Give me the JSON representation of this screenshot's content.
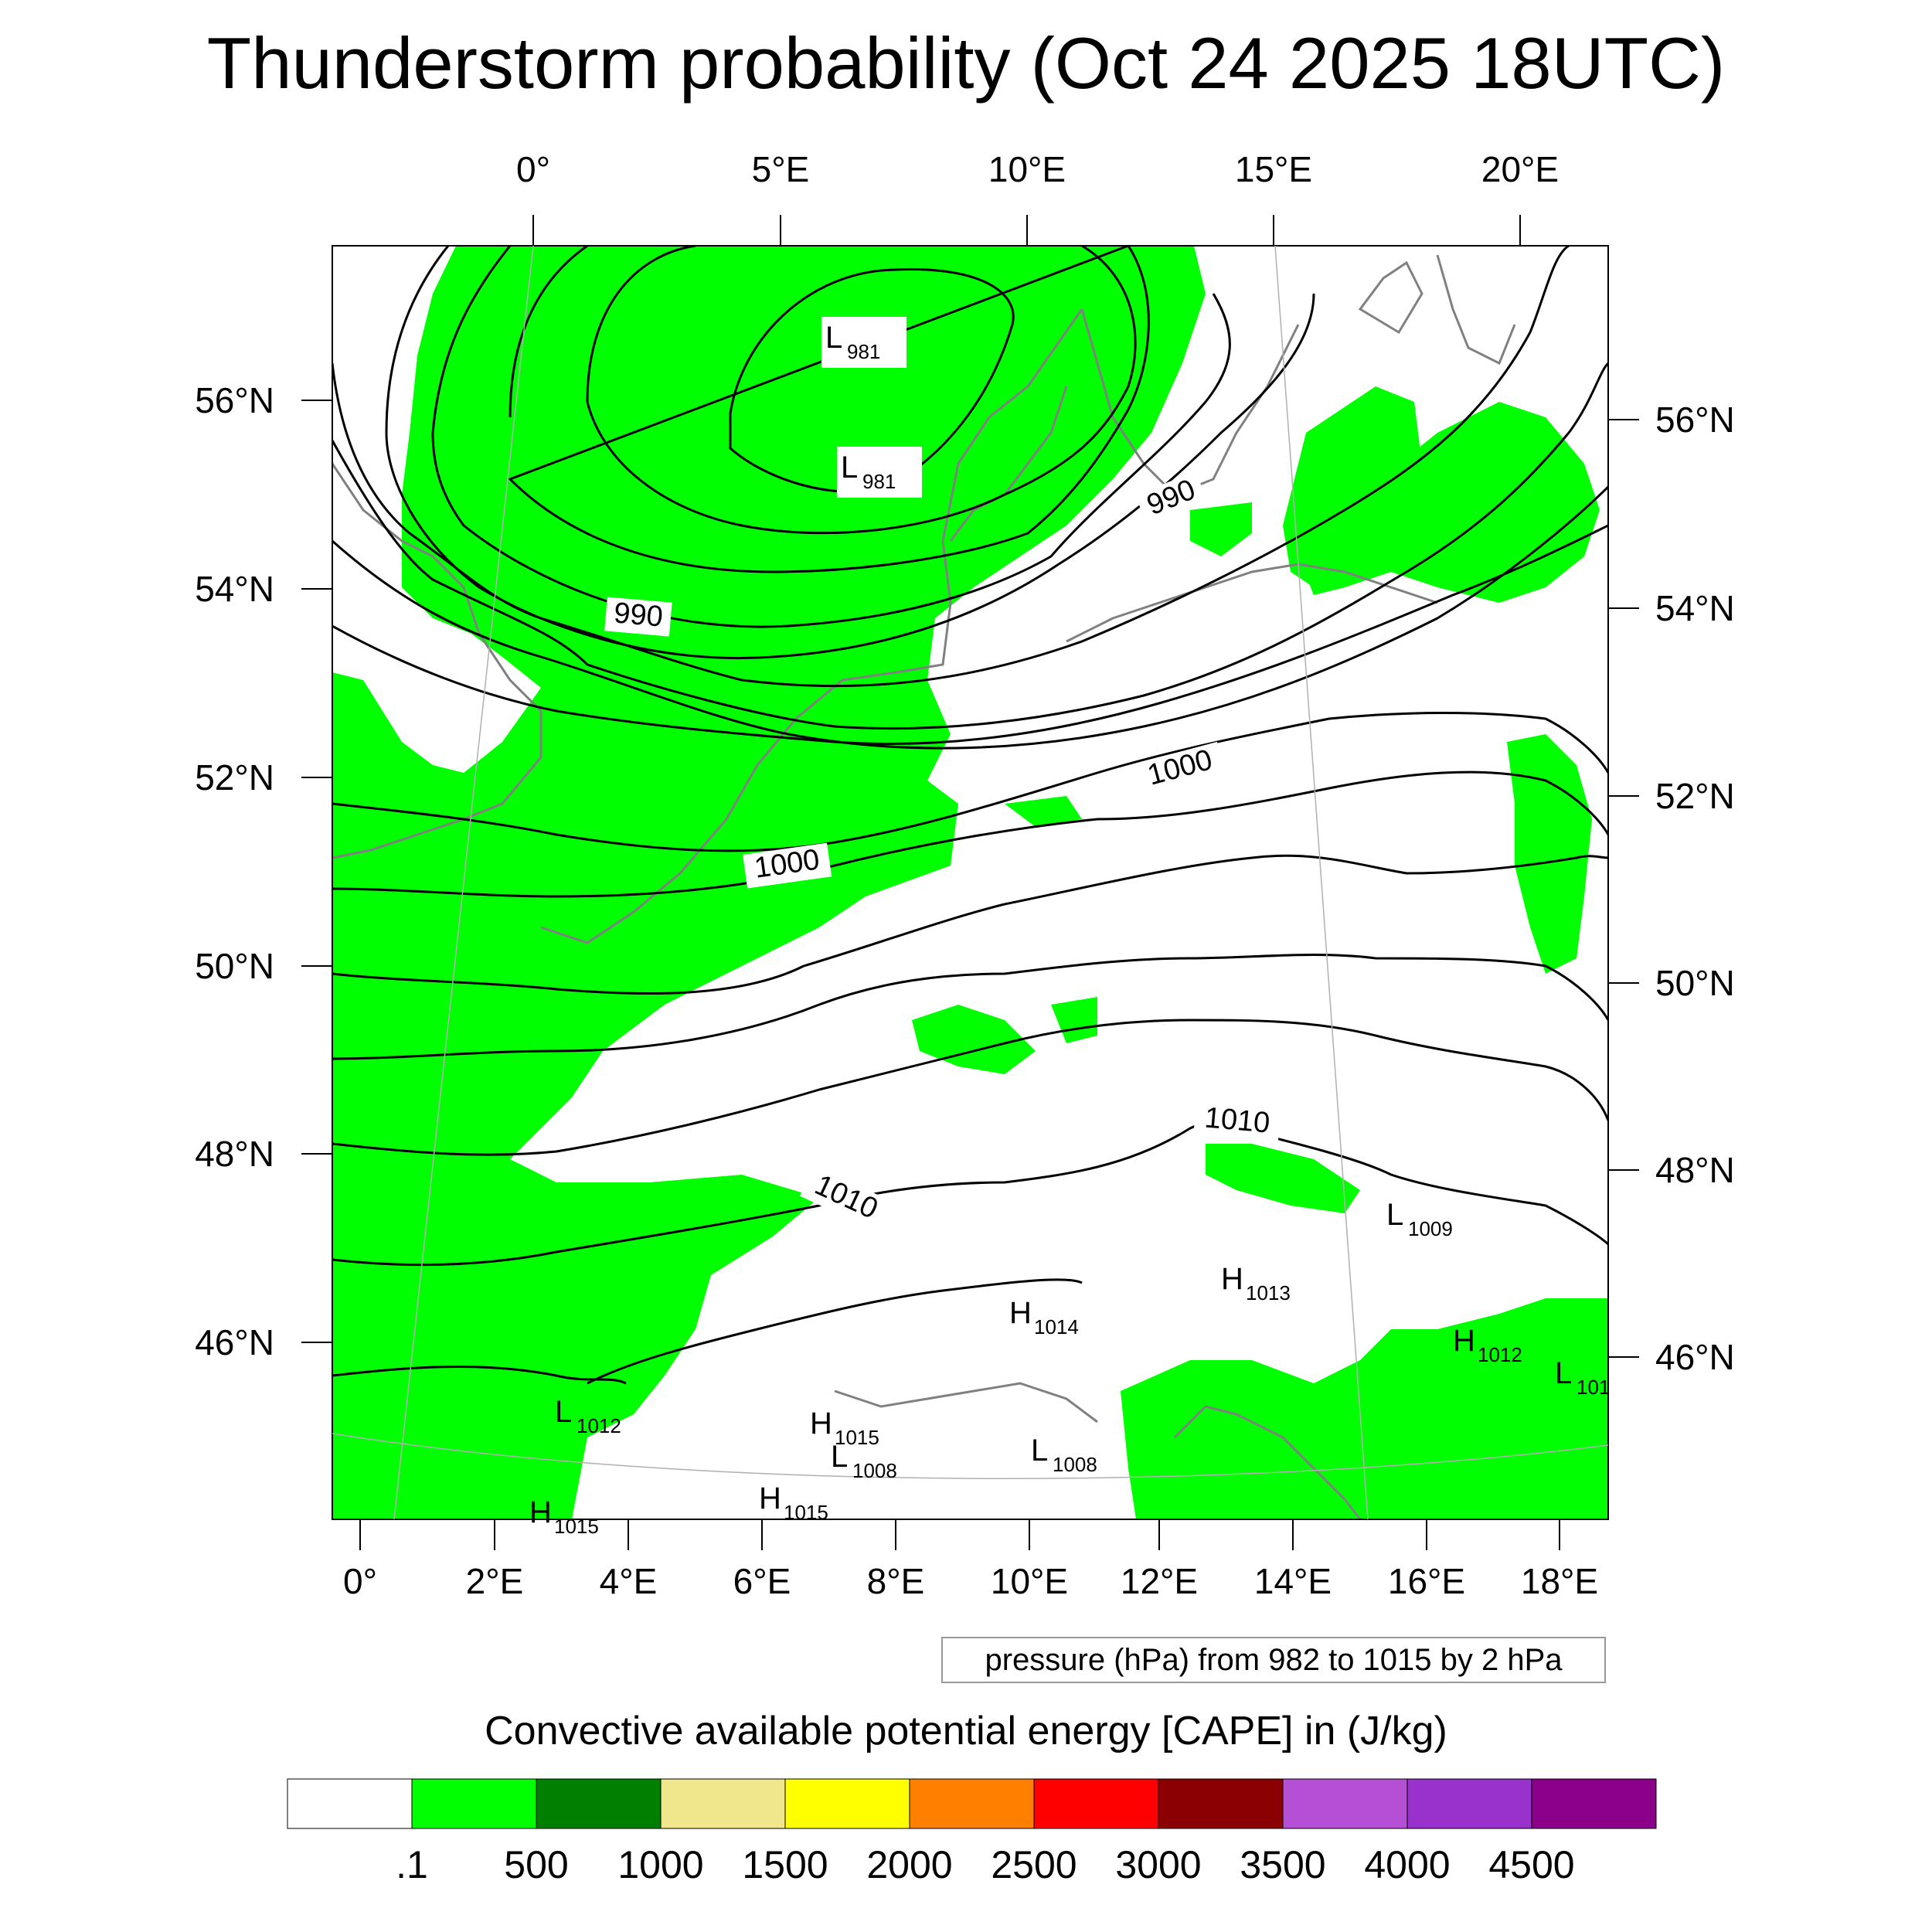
{
  "title": "Thunderstorm probability (Oct 24 2025 18UTC)",
  "top_axis_labels": [
    "0°",
    "5°E",
    "10°E",
    "15°E",
    "20°E"
  ],
  "bottom_axis_labels": [
    "0°",
    "2°E",
    "4°E",
    "6°E",
    "8°E",
    "10°E",
    "12°E",
    "14°E",
    "16°E",
    "18°E"
  ],
  "left_axis_labels": [
    "56°N",
    "54°N",
    "52°N",
    "50°N",
    "48°N",
    "46°N"
  ],
  "right_axis_labels": [
    "56°N",
    "54°N",
    "52°N",
    "50°N",
    "48°N",
    "46°N"
  ],
  "isobar_labels": [
    "990",
    "990",
    "1000",
    "1000",
    "1010",
    "1010"
  ],
  "pressure_centers": [
    {
      "type": "L",
      "value": "981"
    },
    {
      "type": "L",
      "value": "981"
    },
    {
      "type": "H",
      "value": "1013"
    },
    {
      "type": "L",
      "value": "1009"
    },
    {
      "type": "H",
      "value": "1014"
    },
    {
      "type": "H",
      "value": "1012"
    },
    {
      "type": "L",
      "value": "101"
    },
    {
      "type": "L",
      "value": "1012"
    },
    {
      "type": "H",
      "value": "1015"
    },
    {
      "type": "L",
      "value": "1008"
    },
    {
      "type": "L",
      "value": "1008"
    },
    {
      "type": "H",
      "value": "1015"
    },
    {
      "type": "H",
      "value": "1015"
    }
  ],
  "contour_info": "pressure (hPa) from 982 to 1015 by 2 hPa",
  "colorbar": {
    "title": "Convective available potential energy [CAPE] in (J/kg)",
    "labels": [
      ".1",
      "500",
      "1000",
      "1500",
      "2000",
      "2500",
      "3000",
      "3500",
      "4000",
      "4500"
    ],
    "colors": [
      "#ffffff",
      "#00ff00",
      "#007f00",
      "#f0e68c",
      "#ffff00",
      "#ff8000",
      "#ff0000",
      "#8b0000",
      "#b550d6",
      "#9932cc",
      "#8b008b"
    ]
  },
  "colors": {
    "cape_green": "#00ff00",
    "coastline": "#808080",
    "isobar": "#000000"
  }
}
